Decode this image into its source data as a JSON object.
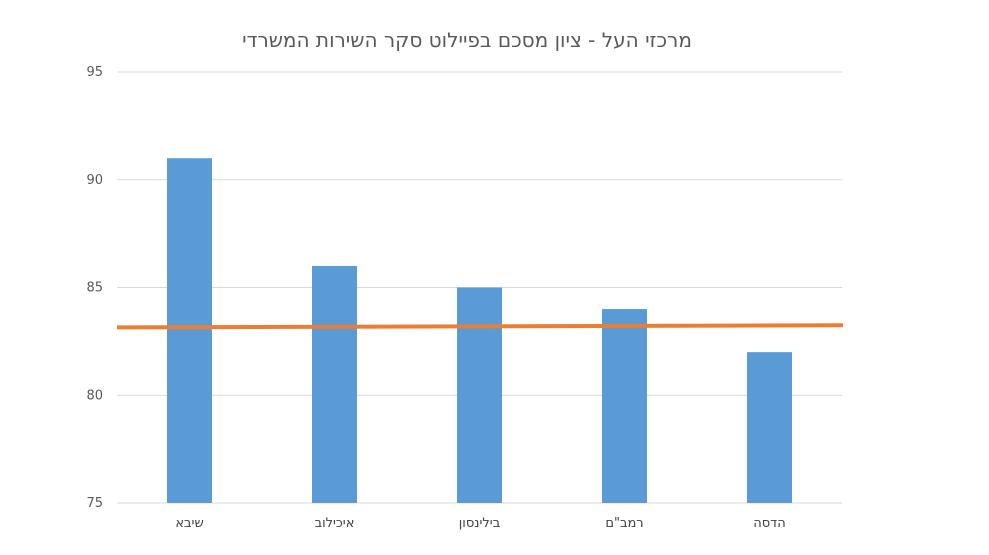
{
  "chart_data": {
    "type": "bar",
    "title": "מרכזי העל - ציון מסכם בפיילוט סקר השירות המשרדי",
    "categories": [
      "שיבא",
      "איכילוב",
      "בילינסון",
      "רמב\"ם",
      "הדסה"
    ],
    "values": [
      91,
      86,
      85,
      84,
      82
    ],
    "reference_line": {
      "start": 83.15,
      "end": 83.25,
      "color": "#ED7D31"
    },
    "ylim": [
      75,
      95
    ],
    "yticks": [
      75,
      80,
      85,
      90,
      95
    ],
    "xlabel": "",
    "ylabel": "",
    "grid": true,
    "legend": "none",
    "bar_color": "#5B9BD5",
    "grid_color": "#D9D9D9"
  }
}
